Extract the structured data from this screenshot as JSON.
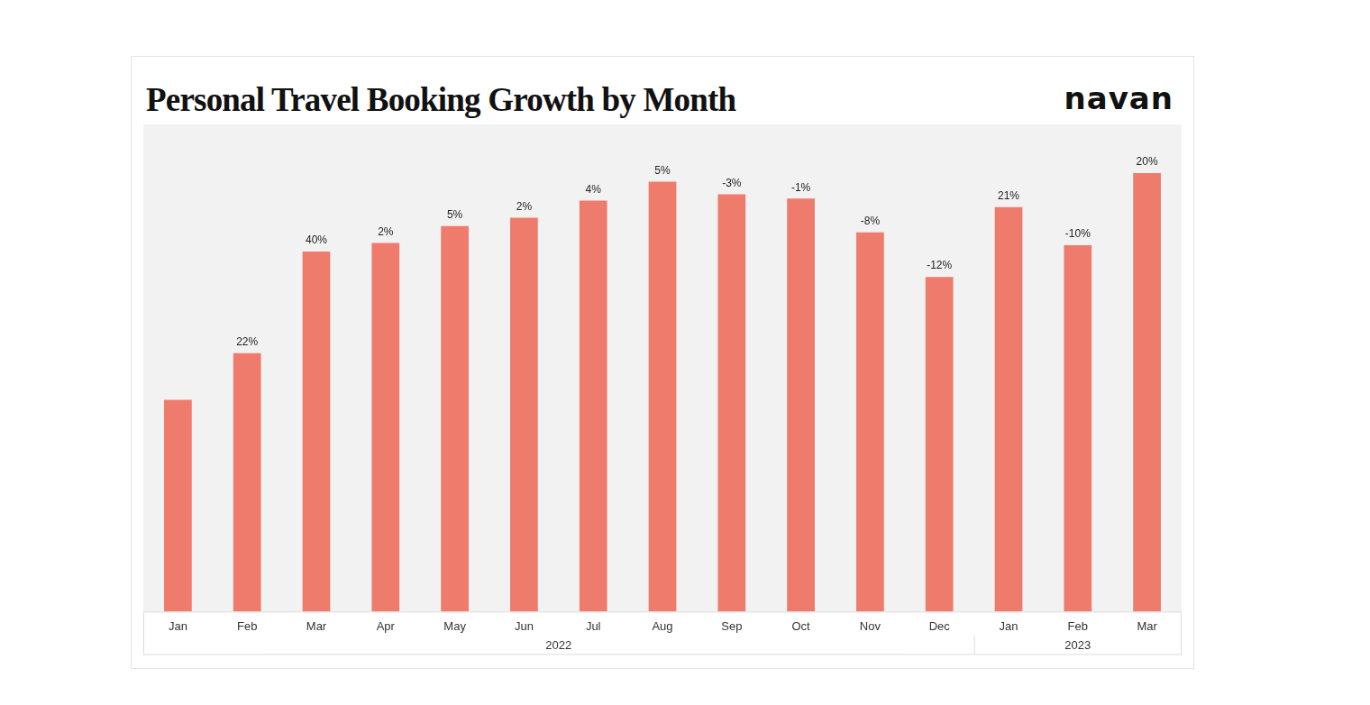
{
  "chart_data": {
    "type": "bar",
    "title": "Personal Travel Booking Growth by Month",
    "logo": "navan",
    "categories": [
      "Jan",
      "Feb",
      "Mar",
      "Apr",
      "May",
      "Jun",
      "Jul",
      "Aug",
      "Sep",
      "Oct",
      "Nov",
      "Dec",
      "Jan",
      "Feb",
      "Mar"
    ],
    "years": [
      "2022",
      "2022",
      "2022",
      "2022",
      "2022",
      "2022",
      "2022",
      "2022",
      "2022",
      "2022",
      "2022",
      "2022",
      "2023",
      "2023",
      "2023"
    ],
    "values": [
      100,
      122,
      170,
      174,
      182,
      186,
      194,
      203,
      197,
      195,
      179,
      158,
      191,
      173,
      207
    ],
    "growth_labels": [
      null,
      "22%",
      "40%",
      "2%",
      "5%",
      "2%",
      "4%",
      "5%",
      "-3%",
      "-1%",
      "-8%",
      "-12%",
      "21%",
      "-10%",
      "20%"
    ],
    "color": "#ef7b6c",
    "ylim": [
      0,
      230
    ],
    "grid": false,
    "tick_labels": "x"
  }
}
